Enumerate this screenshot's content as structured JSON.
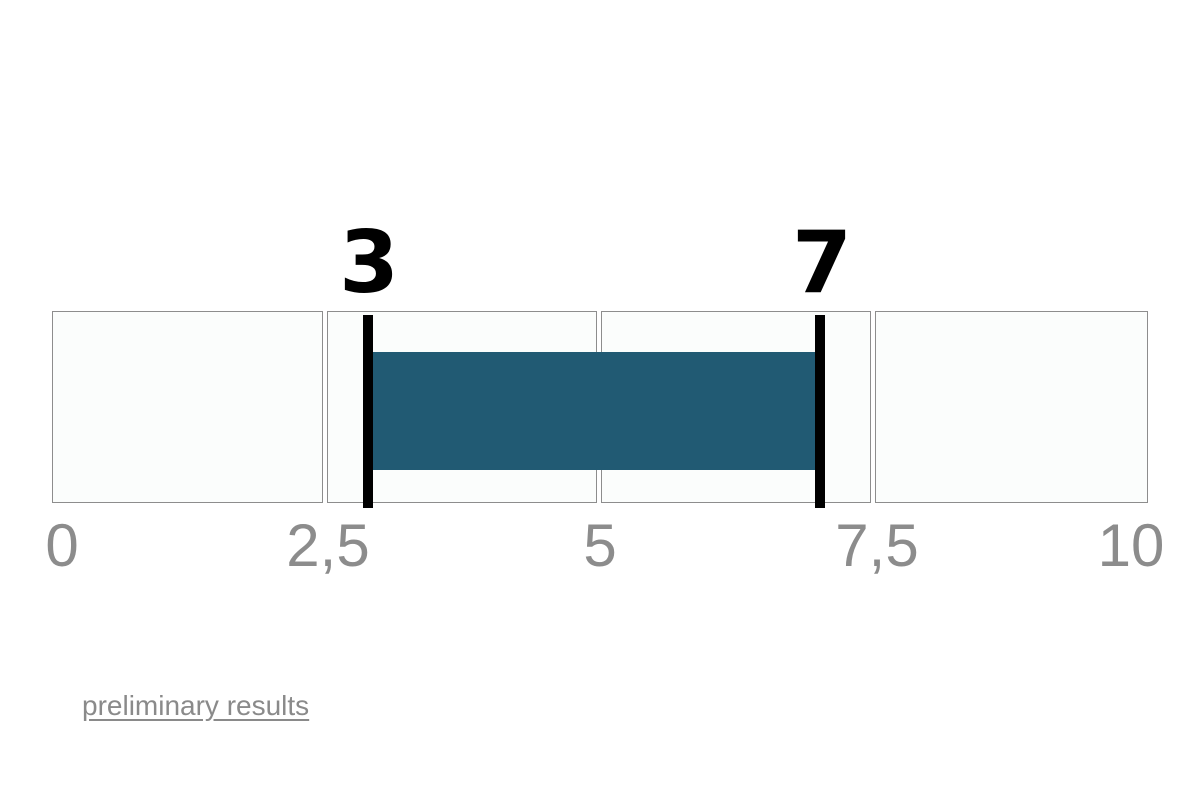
{
  "chart_data": {
    "type": "bar",
    "subtype": "range-indicator",
    "title": "",
    "axis": {
      "min": 0,
      "max": 10,
      "tick_values": [
        0,
        2.5,
        5,
        7.5,
        10
      ],
      "ticks": [
        "0",
        "2,5",
        "5",
        "7,5",
        "10"
      ],
      "grid": false,
      "legend": "none"
    },
    "segments": [
      {
        "from": 0,
        "to": 2.5
      },
      {
        "from": 2.5,
        "to": 5
      },
      {
        "from": 5,
        "to": 7.5
      },
      {
        "from": 7.5,
        "to": 10
      }
    ],
    "range": {
      "start": 3,
      "end": 7
    },
    "markers": [
      {
        "value": 3,
        "label": "3"
      },
      {
        "value": 7,
        "label": "7"
      }
    ],
    "colors": {
      "bar": "#215a73",
      "marker": "#000000",
      "segment_fill": "#fbfdfc",
      "segment_border": "#8d8d8d",
      "tick_text": "#8c8c8c"
    }
  },
  "footer": {
    "link_label": "preliminary results",
    "link_color": "#8a8a8a"
  }
}
